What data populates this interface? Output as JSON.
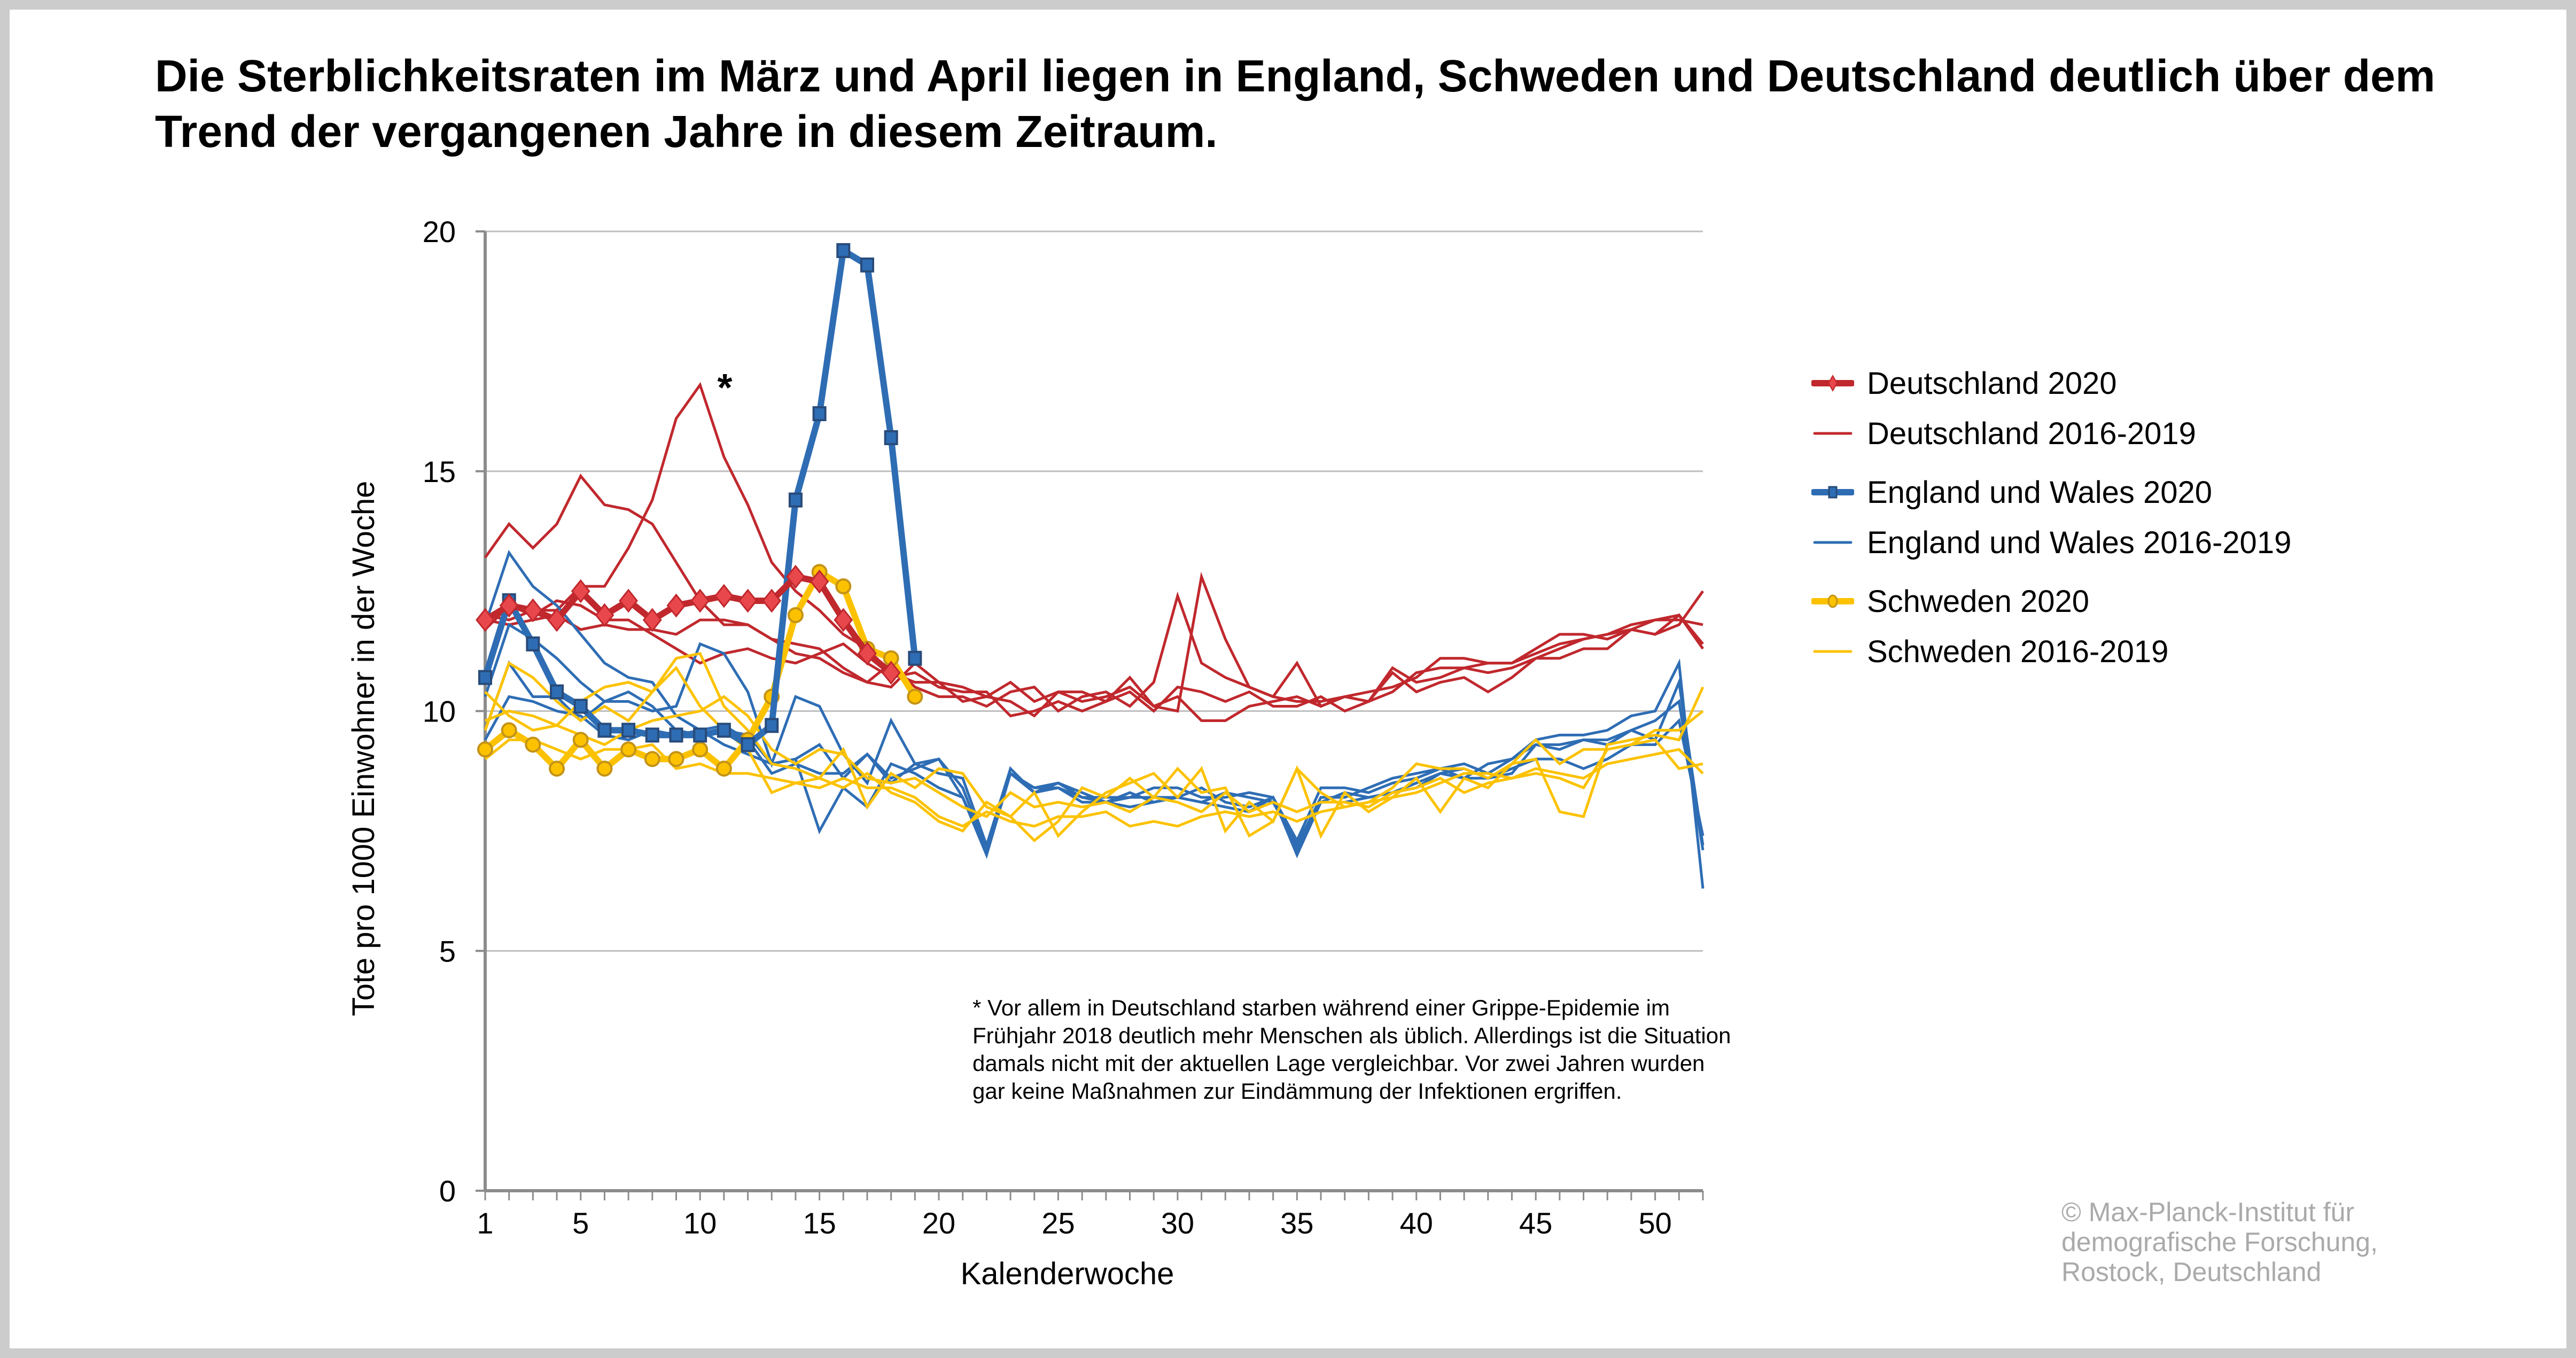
{
  "title": "Die Sterblichkeitsraten im März und April liegen in England, Schweden und Deutschland deutlich über dem Trend der vergangenen Jahre in diesem Zeitraum.",
  "footnote": "* Vor allem in Deutschland starben während einer Grippe-Epidemie im Frühjahr 2018 deutlich mehr Menschen als üblich. Allerdings ist die Situation damals nicht mit der aktuellen Lage vergleichbar. Vor zwei Jahren wurden gar keine Maßnahmen zur Eindämmung der Infektionen ergriffen.",
  "copyright": [
    "© Max-Planck-Institut für",
    "demografische Forschung,",
    "Rostock, Deutschland"
  ],
  "colors": {
    "germany": "#c0282d",
    "germany_marker": "#e8474c",
    "england": "#2e6db4",
    "england_marker": "#284b7a",
    "sweden": "#fcc200",
    "sweden_marker": "#c49317",
    "grid": "#bfbfbf",
    "axis": "#8c8c8c"
  },
  "chart_data": {
    "type": "line",
    "title": "Die Sterblichkeitsraten im März und April liegen in England, Schweden und Deutschland deutlich über dem Trend der vergangenen Jahre in diesem Zeitraum.",
    "xlabel": "Kalenderwoche",
    "ylabel": "Tote pro 1000 Einwohner in der Woche",
    "xlim": [
      1,
      52
    ],
    "ylim": [
      0,
      20
    ],
    "xticks": [
      1,
      5,
      10,
      15,
      20,
      25,
      30,
      35,
      40,
      45,
      50
    ],
    "yticks": [
      0,
      5,
      10,
      15,
      20
    ],
    "grid": "horizontal",
    "legend_position": "right",
    "annotation": {
      "text": "*",
      "x": 10.5,
      "y": 16.8
    },
    "legend": [
      {
        "label": "Deutschland 2020",
        "series": "de2020",
        "marker": "diamond"
      },
      {
        "label": "Deutschland 2016-2019",
        "series": "de_hist",
        "marker": "none"
      },
      {
        "label": "England und Wales 2020",
        "series": "ew2020",
        "marker": "square"
      },
      {
        "label": "England und Wales 2016-2019",
        "series": "ew_hist",
        "marker": "none"
      },
      {
        "label": "Schweden 2020",
        "series": "se2020",
        "marker": "circle"
      },
      {
        "label": "Schweden 2016-2019",
        "series": "se_hist",
        "marker": "none"
      }
    ],
    "series": [
      {
        "name": "Deutschland 2020",
        "group": "de",
        "bold": true,
        "marker": "diamond",
        "values": [
          11.9,
          12.2,
          12.1,
          11.9,
          12.5,
          12.0,
          12.3,
          11.9,
          12.2,
          12.3,
          12.4,
          12.3,
          12.3,
          12.8,
          12.7,
          11.9,
          11.2,
          10.8
        ]
      },
      {
        "name": "Deutschland 2016",
        "group": "de",
        "values": [
          11.7,
          12.2,
          12.0,
          12.3,
          12.2,
          11.9,
          11.9,
          11.6,
          11.3,
          11.0,
          11.2,
          11.3,
          11.1,
          11.0,
          11.2,
          11.4,
          11.0,
          10.7,
          10.8,
          10.5,
          10.4,
          10.4,
          9.9,
          10.0,
          10.2,
          10.0,
          10.2,
          10.4,
          10.0,
          10.5,
          10.4,
          10.2,
          10.4,
          10.1,
          10.1,
          10.3,
          10.0,
          10.2,
          10.4,
          10.8,
          10.9,
          10.9,
          11.0,
          11.0,
          11.2,
          11.4,
          11.5,
          11.6,
          11.8,
          11.9,
          11.9,
          11.8
        ]
      },
      {
        "name": "Deutschland 2017",
        "group": "de",
        "values": [
          13.2,
          13.9,
          13.4,
          13.9,
          14.9,
          14.3,
          14.2,
          13.9,
          13.1,
          12.3,
          11.8,
          11.8,
          11.5,
          11.2,
          11.1,
          10.8,
          10.6,
          11.0,
          10.5,
          10.3,
          10.3,
          10.1,
          10.4,
          10.5,
          10.0,
          10.3,
          10.4,
          10.1,
          10.6,
          12.4,
          11.0,
          10.7,
          10.5,
          10.3,
          10.2,
          10.2,
          10.3,
          10.4,
          10.5,
          10.7,
          11.1,
          11.1,
          11.0,
          11.0,
          11.3,
          11.6,
          11.6,
          11.5,
          11.7,
          11.9,
          12.0,
          11.4
        ]
      },
      {
        "name": "Deutschland 2018",
        "group": "de",
        "values": [
          12.0,
          11.9,
          12.1,
          12.1,
          12.6,
          12.6,
          13.4,
          14.4,
          16.1,
          16.8,
          15.3,
          14.3,
          13.1,
          12.5,
          12.1,
          11.6,
          11.3,
          10.8,
          10.6,
          10.6,
          10.5,
          10.3,
          10.6,
          10.2,
          10.4,
          10.4,
          10.2,
          10.7,
          10.1,
          10.0,
          12.8,
          11.5,
          10.5,
          10.3,
          11.0,
          10.1,
          10.3,
          10.2,
          10.8,
          10.4,
          10.6,
          10.7,
          10.4,
          10.7,
          11.1,
          11.3,
          11.5,
          11.6,
          11.7,
          11.6,
          11.8,
          12.5
        ]
      },
      {
        "name": "Deutschland 2019",
        "group": "de",
        "values": [
          11.9,
          11.8,
          11.9,
          12.0,
          11.7,
          11.8,
          11.7,
          11.7,
          11.6,
          11.9,
          11.9,
          11.8,
          11.5,
          11.4,
          11.3,
          10.9,
          10.6,
          10.5,
          11.0,
          10.6,
          10.2,
          10.3,
          10.2,
          9.9,
          10.4,
          10.2,
          10.3,
          10.5,
          10.1,
          10.3,
          9.8,
          9.8,
          10.1,
          10.2,
          10.3,
          10.1,
          10.3,
          10.2,
          10.9,
          10.6,
          10.7,
          10.9,
          10.8,
          10.9,
          11.1,
          11.1,
          11.3,
          11.3,
          11.7,
          11.6,
          12.0,
          11.3
        ]
      },
      {
        "name": "England und Wales 2020",
        "group": "ew",
        "bold": true,
        "marker": "square",
        "values": [
          10.7,
          12.3,
          11.4,
          10.4,
          10.1,
          9.6,
          9.6,
          9.5,
          9.5,
          9.5,
          9.6,
          9.3,
          9.7,
          14.4,
          16.2,
          19.6,
          19.3,
          15.7,
          11.1
        ]
      },
      {
        "name": "England und Wales 2016",
        "group": "ew",
        "values": [
          9.4,
          10.3,
          10.2,
          10.0,
          9.9,
          9.5,
          9.4,
          9.6,
          9.5,
          9.6,
          9.3,
          9.1,
          8.9,
          9.0,
          9.3,
          8.6,
          9.1,
          8.5,
          8.9,
          8.7,
          8.6,
          7.2,
          8.8,
          8.3,
          8.4,
          8.2,
          8.2,
          8.2,
          8.4,
          8.4,
          8.2,
          8.2,
          8.3,
          8.2,
          7.3,
          8.4,
          8.4,
          8.3,
          8.5,
          8.6,
          8.8,
          8.6,
          8.9,
          9.0,
          9.3,
          9.3,
          9.4,
          9.4,
          9.6,
          9.4,
          10.6,
          7.2
        ]
      },
      {
        "name": "England und Wales 2017",
        "group": "ew",
        "values": [
          11.8,
          13.3,
          12.6,
          12.2,
          11.6,
          11.0,
          10.7,
          10.6,
          9.9,
          9.6,
          9.7,
          9.4,
          8.7,
          8.9,
          8.7,
          8.7,
          9.1,
          8.6,
          8.8,
          9.0,
          8.4,
          7.1,
          8.7,
          8.4,
          8.4,
          8.1,
          8.1,
          8.3,
          8.1,
          8.2,
          8.1,
          8.0,
          7.9,
          8.2,
          7.0,
          8.1,
          8.3,
          8.2,
          8.3,
          8.5,
          8.7,
          8.6,
          8.6,
          8.7,
          9.3,
          9.2,
          9.4,
          9.3,
          9.6,
          9.8,
          10.2,
          7.1
        ]
      },
      {
        "name": "England und Wales 2018",
        "group": "ew",
        "values": [
          10.3,
          11.8,
          11.5,
          11.1,
          10.6,
          10.2,
          10.2,
          10.0,
          10.1,
          11.4,
          11.2,
          10.4,
          8.9,
          10.3,
          10.1,
          9.1,
          8.5,
          9.8,
          8.9,
          9.0,
          8.2,
          7.1,
          8.7,
          8.4,
          8.5,
          8.2,
          8.1,
          8.0,
          8.1,
          8.2,
          8.1,
          8.3,
          8.2,
          8.1,
          7.2,
          8.2,
          8.2,
          8.4,
          8.6,
          8.7,
          8.8,
          8.9,
          8.7,
          9.0,
          9.4,
          9.5,
          9.5,
          9.6,
          9.9,
          10.0,
          11.0,
          6.3
        ]
      },
      {
        "name": "England und Wales 2019",
        "group": "ew",
        "values": [
          9.6,
          11.0,
          10.3,
          10.3,
          9.8,
          10.2,
          10.4,
          10.1,
          9.6,
          9.5,
          9.6,
          9.5,
          8.9,
          9.0,
          7.5,
          8.4,
          8.0,
          8.9,
          8.7,
          8.4,
          8.2,
          7.0,
          8.7,
          8.3,
          8.5,
          8.3,
          8.1,
          8.2,
          8.2,
          8.2,
          8.4,
          8.1,
          8.0,
          8.2,
          7.1,
          8.1,
          8.1,
          8.2,
          8.3,
          8.4,
          8.7,
          8.8,
          8.6,
          8.8,
          9.0,
          9.0,
          8.8,
          9.0,
          9.3,
          9.3,
          9.8,
          7.4
        ]
      },
      {
        "name": "Schweden 2020",
        "group": "se",
        "bold": true,
        "marker": "circle",
        "values": [
          9.2,
          9.6,
          9.3,
          8.8,
          9.4,
          8.8,
          9.2,
          9.0,
          9.0,
          9.2,
          8.8,
          9.4,
          10.3,
          12.0,
          12.9,
          12.6,
          11.3,
          11.1,
          10.3
        ]
      },
      {
        "name": "Schweden 2016",
        "group": "se",
        "values": [
          9.0,
          9.4,
          9.4,
          9.2,
          9.0,
          9.2,
          9.2,
          9.3,
          8.8,
          8.9,
          8.7,
          8.7,
          8.6,
          8.5,
          8.4,
          8.6,
          8.4,
          8.4,
          8.2,
          7.8,
          7.6,
          7.9,
          7.7,
          7.6,
          7.8,
          7.8,
          7.9,
          7.6,
          7.7,
          7.6,
          7.8,
          7.9,
          7.8,
          7.9,
          7.7,
          7.9,
          8.0,
          8.1,
          8.2,
          8.3,
          8.5,
          8.7,
          8.7,
          8.6,
          8.8,
          8.7,
          8.6,
          8.9,
          9.0,
          9.1,
          9.2,
          8.7
        ]
      },
      {
        "name": "Schweden 2017",
        "group": "se",
        "values": [
          9.8,
          10.0,
          9.9,
          9.7,
          9.5,
          9.3,
          9.6,
          9.8,
          9.9,
          10.0,
          10.3,
          9.9,
          9.2,
          8.9,
          9.2,
          9.1,
          8.6,
          8.5,
          8.6,
          8.3,
          8.0,
          7.8,
          8.3,
          8.0,
          8.1,
          8.0,
          8.1,
          7.9,
          8.2,
          8.1,
          7.9,
          8.3,
          7.9,
          8.1,
          7.9,
          8.1,
          8.1,
          8.0,
          8.3,
          8.4,
          8.6,
          8.3,
          8.5,
          8.6,
          8.7,
          8.6,
          8.4,
          9.2,
          9.3,
          9.4,
          8.8,
          8.9
        ]
      },
      {
        "name": "Schweden 2018",
        "group": "se",
        "values": [
          10.4,
          9.9,
          9.6,
          9.7,
          10.2,
          10.5,
          10.6,
          10.4,
          11.1,
          11.2,
          10.1,
          9.6,
          8.9,
          8.8,
          8.6,
          8.4,
          8.7,
          8.3,
          8.1,
          7.7,
          7.5,
          8.1,
          7.8,
          7.3,
          7.7,
          8.4,
          8.2,
          8.6,
          8.2,
          8.8,
          8.3,
          8.4,
          7.4,
          7.7,
          8.8,
          7.4,
          8.3,
          7.9,
          8.2,
          8.6,
          7.9,
          8.6,
          8.4,
          8.9,
          9.0,
          7.9,
          7.8,
          9.3,
          9.4,
          9.5,
          9.4,
          10.5
        ]
      },
      {
        "name": "Schweden 2019",
        "group": "se",
        "values": [
          9.6,
          11.0,
          10.7,
          10.2,
          9.8,
          10.1,
          9.8,
          10.4,
          10.9,
          10.1,
          9.6,
          9.2,
          8.3,
          8.5,
          8.6,
          9.2,
          8.0,
          8.7,
          8.4,
          8.8,
          8.7,
          8.0,
          7.8,
          8.3,
          7.4,
          7.9,
          8.3,
          8.5,
          8.7,
          8.2,
          8.8,
          7.5,
          8.1,
          7.7,
          8.8,
          8.3,
          8.0,
          8.1,
          8.4,
          8.9,
          8.8,
          8.8,
          8.6,
          8.9,
          9.4,
          8.9,
          9.2,
          9.2,
          9.3,
          9.6,
          9.6,
          10.0
        ]
      }
    ]
  }
}
